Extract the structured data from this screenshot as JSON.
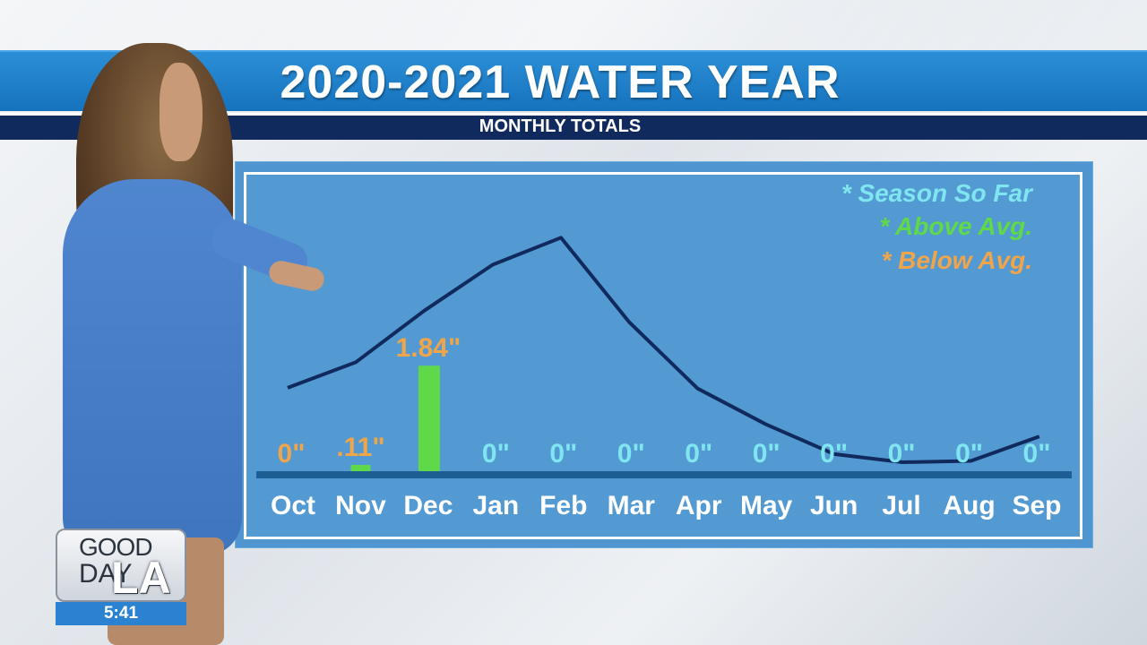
{
  "header": {
    "title": "2020-2021 WATER YEAR",
    "subtitle": "MONTHLY TOTALS"
  },
  "legend": {
    "season": "* Season So Far",
    "above": "* Above Avg.",
    "below": "* Below Avg."
  },
  "colors": {
    "season": "#7fe6f0",
    "above": "#5fd84a",
    "below": "#f0a54a",
    "line": "#112a5e",
    "baseline": "#1d5e94"
  },
  "logo": {
    "good": "GOOD",
    "day": "DAY",
    "la": "LA"
  },
  "clock": "5:41",
  "chart_data": {
    "type": "bar",
    "categories": [
      "Oct",
      "Nov",
      "Dec",
      "Jan",
      "Feb",
      "Mar",
      "Apr",
      "May",
      "Jun",
      "Jul",
      "Aug",
      "Sep"
    ],
    "values": [
      0,
      0.11,
      1.84,
      0,
      0,
      0,
      0,
      0,
      0,
      0,
      0,
      0
    ],
    "labels": [
      "0\"",
      ".11\"",
      "1.84\"",
      "0\"",
      "0\"",
      "0\"",
      "0\"",
      "0\"",
      "0\"",
      "0\"",
      "0\"",
      "0\""
    ],
    "label_colors": [
      "below",
      "below",
      "below",
      "season",
      "season",
      "season",
      "season",
      "season",
      "season",
      "season",
      "season",
      "season"
    ],
    "ylim": [
      0,
      2.5
    ],
    "line": {
      "values": [
        1.18,
        1.56,
        2.32,
        3.0,
        3.4,
        2.15,
        1.17,
        0.64,
        0.2,
        0.08,
        0.1,
        0.46
      ],
      "ylim": [
        0,
        4
      ]
    }
  }
}
